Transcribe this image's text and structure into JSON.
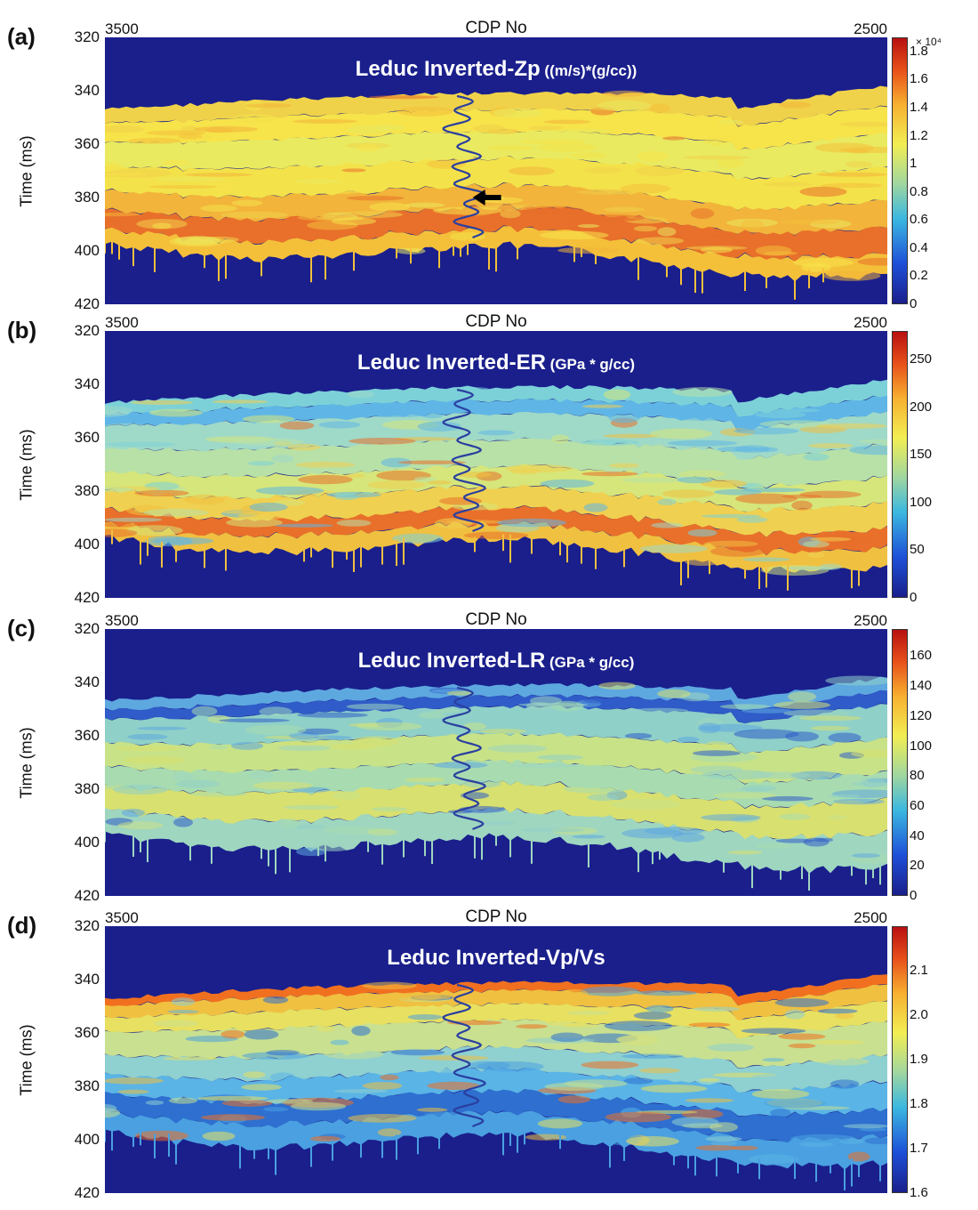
{
  "chart_data": [
    {
      "panel_label": "(a)",
      "type": "heatmap",
      "title": "Leduc Inverted-Zp",
      "title_unit": "((m/s)*(g/cc))",
      "xlabel": "CDP No",
      "ylabel": "Time (ms)",
      "x_range": [
        3500,
        2500
      ],
      "x_ticks": [
        "3500",
        "2500"
      ],
      "ylim": [
        320,
        420
      ],
      "y_ticks": [
        "320",
        "340",
        "360",
        "380",
        "400",
        "420"
      ],
      "colorbar_ticks": [
        "1.8",
        "1.6",
        "1.4",
        "1.2",
        "1",
        "0.8",
        "0.6",
        "0.4",
        "0.2",
        "0"
      ],
      "colorbar_exponent": "× 10⁴",
      "colorbar_range": [
        0,
        1.9
      ],
      "annotation": "arrow at well log near 380 ms",
      "colors": {
        "background": "#1a1f8c",
        "low": "#1a3fd0",
        "mid": "#e8e84a",
        "high": "#c81010"
      }
    },
    {
      "panel_label": "(b)",
      "type": "heatmap",
      "title": "Leduc Inverted-ER",
      "title_unit": "(GPa * g/cc)",
      "xlabel": "CDP No",
      "ylabel": "Time (ms)",
      "x_range": [
        3500,
        2500
      ],
      "x_ticks": [
        "3500",
        "2500"
      ],
      "ylim": [
        320,
        420
      ],
      "y_ticks": [
        "320",
        "340",
        "360",
        "380",
        "400",
        "420"
      ],
      "colorbar_ticks": [
        "250",
        "200",
        "150",
        "100",
        "50",
        "0"
      ],
      "colorbar_range": [
        0,
        280
      ]
    },
    {
      "panel_label": "(c)",
      "type": "heatmap",
      "title": "Leduc Inverted-LR",
      "title_unit": "(GPa * g/cc)",
      "xlabel": "CDP No",
      "ylabel": "Time (ms)",
      "x_range": [
        3500,
        2500
      ],
      "x_ticks": [
        "3500",
        "2500"
      ],
      "ylim": [
        320,
        420
      ],
      "y_ticks": [
        "320",
        "340",
        "360",
        "380",
        "400",
        "420"
      ],
      "colorbar_ticks": [
        "160",
        "140",
        "120",
        "100",
        "80",
        "60",
        "40",
        "20",
        "0"
      ],
      "colorbar_range": [
        0,
        178
      ]
    },
    {
      "panel_label": "(d)",
      "type": "heatmap",
      "title": "Leduc Inverted-Vp/Vs",
      "title_unit": "",
      "xlabel": "CDP No",
      "ylabel": "Time (ms)",
      "x_range": [
        3500,
        2500
      ],
      "x_ticks": [
        "3500",
        "2500"
      ],
      "ylim": [
        320,
        420
      ],
      "y_ticks": [
        "320",
        "340",
        "360",
        "380",
        "400",
        "420"
      ],
      "colorbar_ticks": [
        "2.1",
        "2.0",
        "1.9",
        "1.8",
        "1.7",
        "1.6"
      ],
      "colorbar_range": [
        1.6,
        2.2
      ]
    }
  ]
}
